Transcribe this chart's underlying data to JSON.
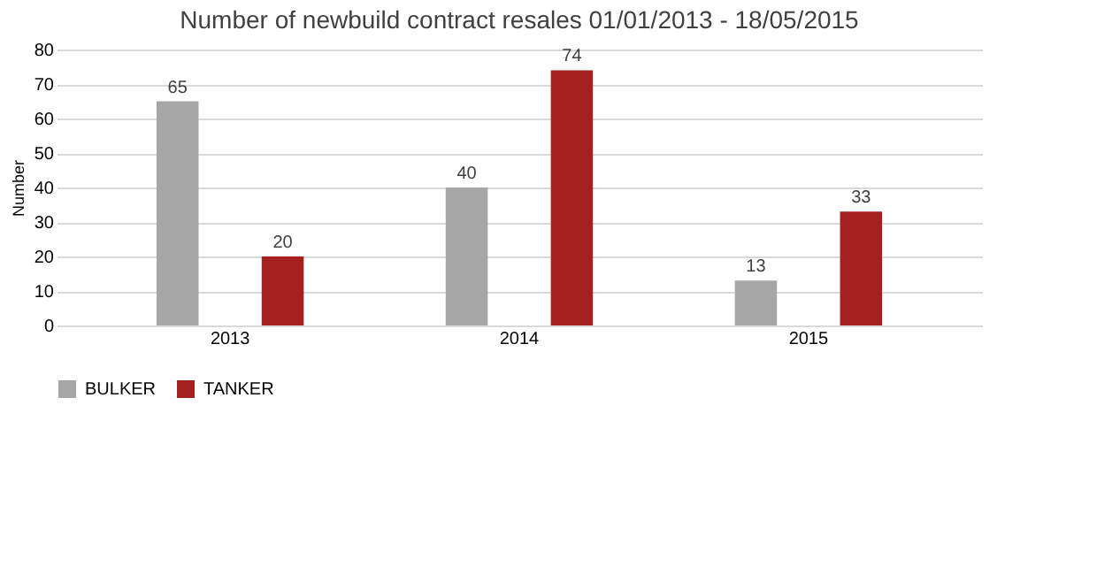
{
  "chart_data": {
    "type": "bar",
    "title": "Number of newbuild contract resales 01/01/2013 - 18/05/2015",
    "ylabel": "Number",
    "categories": [
      "2013",
      "2014",
      "2015"
    ],
    "series": [
      {
        "name": "BULKER",
        "color": "#a6a6a6",
        "values": [
          65,
          40,
          13
        ]
      },
      {
        "name": "TANKER",
        "color": "#a3201e",
        "values": [
          20,
          74,
          33
        ]
      }
    ],
    "ylim": [
      0,
      80
    ],
    "yticks": [
      0,
      10,
      20,
      30,
      40,
      50,
      60,
      70,
      80
    ],
    "grid": "y",
    "legend": "bottom",
    "data_labels": true
  }
}
